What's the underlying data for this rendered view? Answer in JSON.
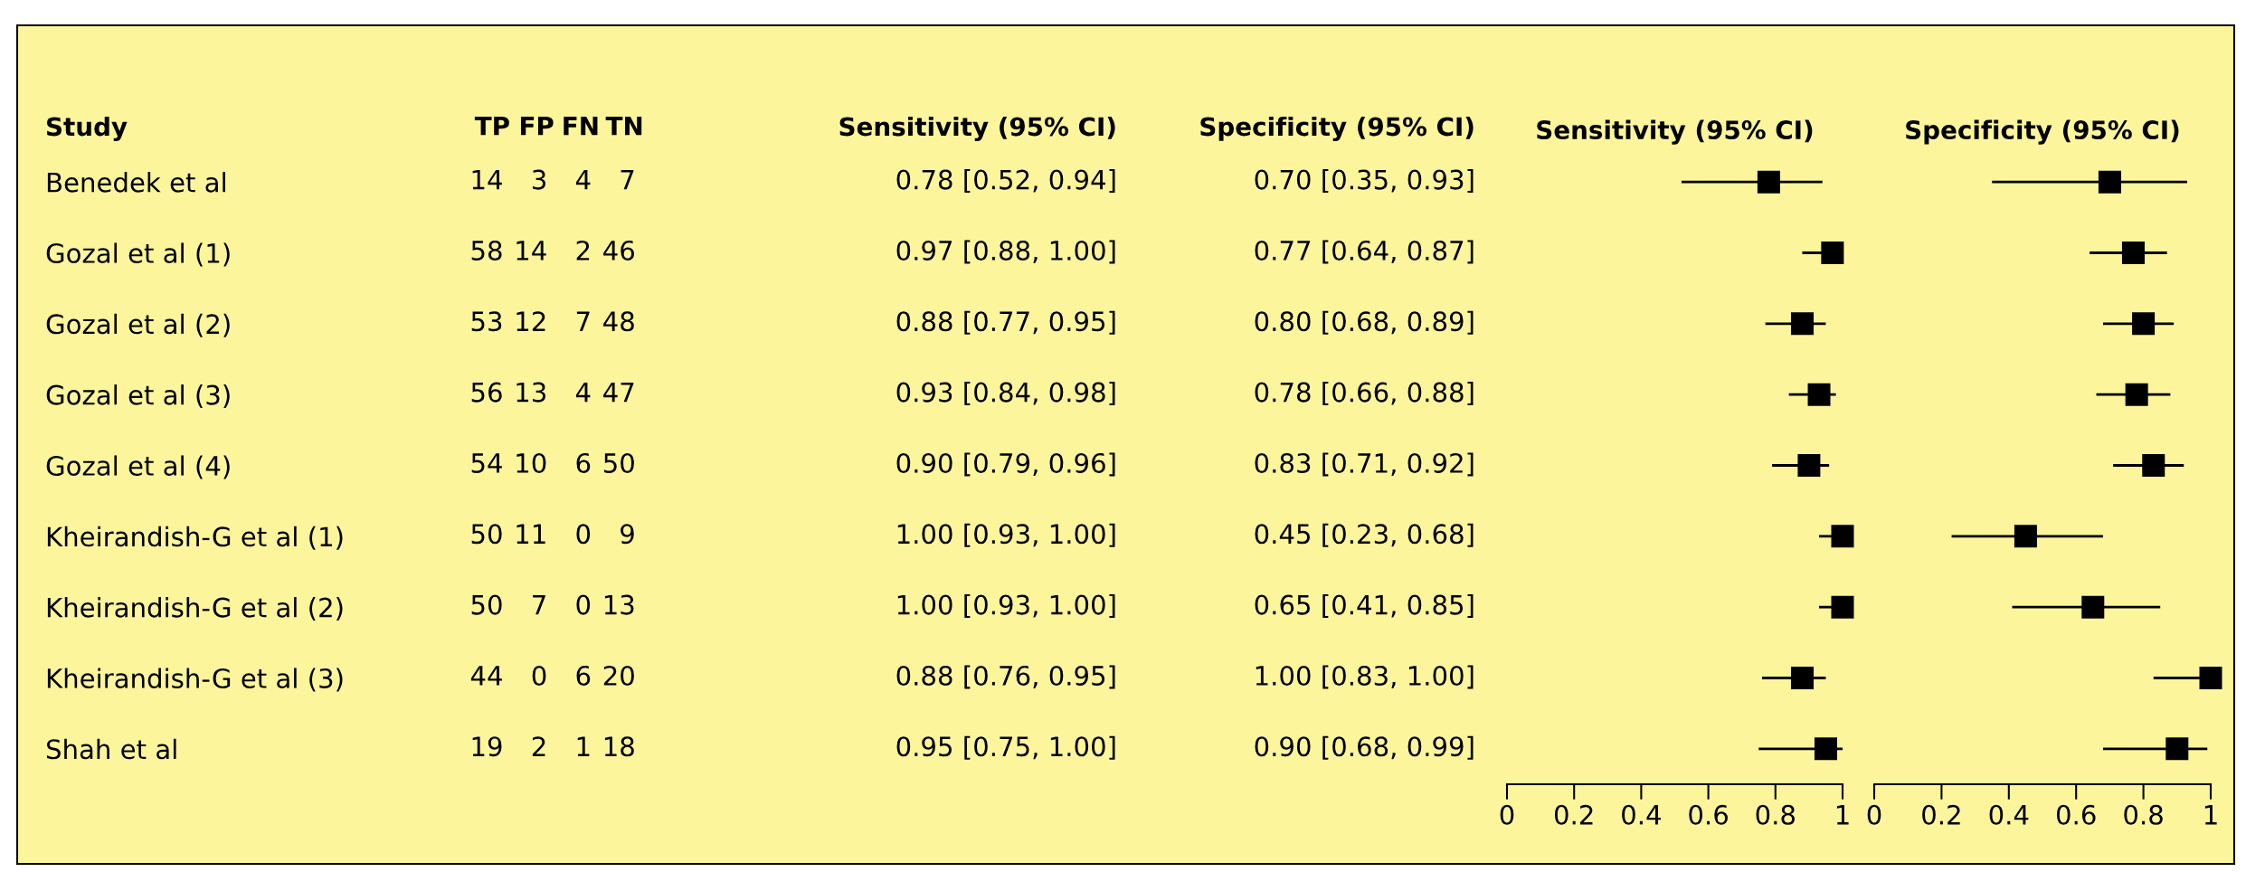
{
  "chart_data": [
    {
      "type": "heatmap",
      "ylabel": "Study",
      "data_labels": true,
      "categories": [
        "TP",
        "FP",
        "FN",
        "TN"
      ],
      "y_categories": [
        "Benedek et al",
        "Gozal et al (1)",
        "Gozal et al (2)",
        "Gozal et al (3)",
        "Gozal et al (4)",
        "Kheirandish-G et al (1)",
        "Kheirandish-G et al (2)",
        "Kheirandish-G et al (3)",
        "Shah et al"
      ],
      "cells": [
        [
          14,
          3,
          4,
          7
        ],
        [
          58,
          14,
          2,
          46
        ],
        [
          53,
          12,
          7,
          48
        ],
        [
          56,
          13,
          4,
          47
        ],
        [
          54,
          10,
          6,
          50
        ],
        [
          50,
          11,
          0,
          9
        ],
        [
          50,
          7,
          0,
          13
        ],
        [
          44,
          0,
          6,
          20
        ],
        [
          19,
          2,
          1,
          18
        ]
      ]
    },
    {
      "type": "scatter",
      "orientation": "horizontal",
      "title": "Sensitivity (95% CI)",
      "annotations": [
        "Sensitivity (95% CI)"
      ],
      "categories": [
        null,
        null,
        null,
        null,
        null,
        null,
        null,
        null,
        null
      ],
      "values": [
        0.78,
        0.97,
        0.88,
        0.93,
        0.9,
        1.0,
        1.0,
        0.88,
        0.95
      ],
      "errors": [
        [
          0.52,
          0.94
        ],
        [
          0.88,
          1.0
        ],
        [
          0.77,
          0.95
        ],
        [
          0.84,
          0.98
        ],
        [
          0.79,
          0.96
        ],
        [
          0.93,
          1.0
        ],
        [
          0.93,
          1.0
        ],
        [
          0.76,
          0.95
        ],
        [
          0.75,
          1.0
        ]
      ],
      "value_labels": [
        "0.78 [0.52, 0.94]",
        "0.97 [0.88, 1.00]",
        "0.88 [0.77, 0.95]",
        "0.93 [0.84, 0.98]",
        "0.90 [0.79, 0.96]",
        "1.00 [0.93, 1.00]",
        "1.00 [0.93, 1.00]",
        "0.88 [0.76, 0.95]",
        "0.95 [0.75, 1.00]"
      ],
      "color": "#000000",
      "marker": "square",
      "xlim": [
        0,
        1
      ],
      "xticks": [
        0,
        0.2,
        0.4,
        0.6,
        0.8,
        1
      ],
      "tick_labels": "x"
    },
    {
      "type": "scatter",
      "orientation": "horizontal",
      "title": "Specificity (95% CI)",
      "annotations": [
        "Specificity (95% CI)"
      ],
      "categories": [
        null,
        null,
        null,
        null,
        null,
        null,
        null,
        null,
        null
      ],
      "values": [
        0.7,
        0.77,
        0.8,
        0.78,
        0.83,
        0.45,
        0.65,
        1.0,
        0.9
      ],
      "errors": [
        [
          0.35,
          0.93
        ],
        [
          0.64,
          0.87
        ],
        [
          0.68,
          0.89
        ],
        [
          0.66,
          0.88
        ],
        [
          0.71,
          0.92
        ],
        [
          0.23,
          0.68
        ],
        [
          0.41,
          0.85
        ],
        [
          0.83,
          1.0
        ],
        [
          0.68,
          0.99
        ]
      ],
      "value_labels": [
        "0.70 [0.35, 0.93]",
        "0.77 [0.64, 0.87]",
        "0.80 [0.68, 0.89]",
        "0.78 [0.66, 0.88]",
        "0.83 [0.71, 0.92]",
        "0.45 [0.23, 0.68]",
        "0.65 [0.41, 0.85]",
        "1.00 [0.83, 1.00]",
        "0.90 [0.68, 0.99]"
      ],
      "color": "#000000",
      "marker": "square",
      "xlim": [
        0,
        1
      ],
      "xticks": [
        0,
        0.2,
        0.4,
        0.6,
        0.8,
        1
      ],
      "tick_labels": "x"
    }
  ]
}
